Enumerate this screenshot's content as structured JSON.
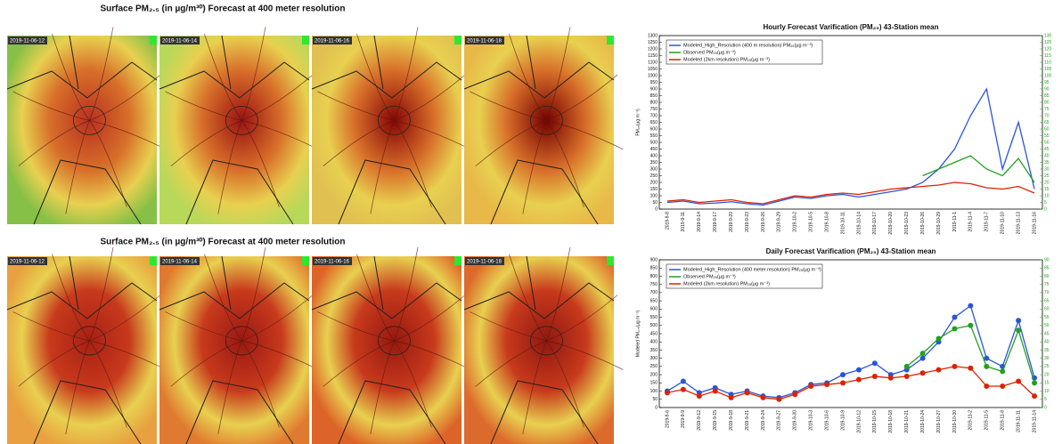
{
  "panels": [
    {
      "title": "Surface PM₂.₅ (in µg/m³⁰) Forecast at 400  meter resolution",
      "timestamps": [
        "2019-11-06-12",
        "2019-11-06-14",
        "2019-11-06-16",
        "2019-11-06-18"
      ]
    },
    {
      "title": "Surface PM₂.₅ (in µg/m³⁰) Forecast at 400  meter resolution",
      "timestamps": [
        "2019-11-06-12",
        "2019-11-06-14",
        "2019-11-06-16",
        "2019-11-06-18"
      ]
    }
  ],
  "chart_data": [
    {
      "type": "line",
      "title": "Hourly Forecast Varification (PM₂₅) 43-Station mean",
      "y_label": "PM₂₅(µg m⁻³)",
      "categories": [
        "2019-9-8",
        "2019-9-11",
        "2019-9-14",
        "2019-9-17",
        "2019-9-20",
        "2019-9-23",
        "2019-9-26",
        "2019-9-29",
        "2019-10-2",
        "2019-10-5",
        "2019-10-8",
        "2019-10-11",
        "2019-10-14",
        "2019-10-17",
        "2019-10-20",
        "2019-10-23",
        "2019-10-26",
        "2019-10-29",
        "2019-11-1",
        "2019-11-4",
        "2019-11-7",
        "2019-11-10",
        "2019-11-13",
        "2019-11-16"
      ],
      "series": [
        {
          "name": "Modeled_High_Resolution (400 m resolution) PM₂₅(µg m⁻³)",
          "color": "#2a55d6",
          "values": [
            50,
            60,
            40,
            45,
            55,
            40,
            30,
            60,
            90,
            80,
            100,
            110,
            90,
            110,
            130,
            150,
            200,
            300,
            450,
            700,
            900,
            300,
            650,
            150
          ]
        },
        {
          "name": "Observed PM₂₅(µg m⁻³)",
          "color": "#22a022",
          "values": [
            null,
            null,
            null,
            null,
            null,
            null,
            null,
            null,
            null,
            null,
            null,
            null,
            null,
            null,
            null,
            null,
            250,
            300,
            350,
            400,
            300,
            250,
            380,
            200
          ]
        },
        {
          "name": "Modeled (2km resolution) PM₂₅(µg m⁻³)",
          "color": "#dd2200",
          "values": [
            60,
            70,
            50,
            60,
            70,
            50,
            40,
            70,
            100,
            90,
            110,
            120,
            110,
            130,
            150,
            160,
            170,
            180,
            200,
            190,
            160,
            150,
            170,
            120
          ]
        }
      ],
      "ylim": [
        0,
        1300
      ],
      "yticks": [
        0,
        50,
        100,
        150,
        200,
        250,
        300,
        350,
        400,
        450,
        500,
        550,
        600,
        650,
        700,
        750,
        800,
        850,
        900,
        950,
        1000,
        1050,
        1100,
        1150,
        1200,
        1250,
        1300
      ],
      "y2lim": [
        0,
        130
      ],
      "y2ticks": [
        0,
        5,
        10,
        15,
        20,
        25,
        30,
        35,
        40,
        45,
        50,
        55,
        60,
        65,
        70,
        75,
        80,
        85,
        90,
        95,
        100,
        105,
        110,
        115,
        120,
        125,
        130
      ],
      "y2color": "#22a022",
      "markers": false
    },
    {
      "type": "line",
      "title": "Daily Forecast Varification (PM₂₅) 43-Station mean",
      "y_label": "Modeled PM₂.₅(µg m⁻³)",
      "categories": [
        "2019-9-6",
        "2019-9-9",
        "2019-9-12",
        "2019-9-15",
        "2019-9-18",
        "2019-9-21",
        "2019-9-24",
        "2019-9-27",
        "2019-9-30",
        "2019-10-3",
        "2019-10-6",
        "2019-10-9",
        "2019-10-12",
        "2019-10-15",
        "2019-10-18",
        "2019-10-21",
        "2019-10-24",
        "2019-10-27",
        "2019-10-30",
        "2019-11-2",
        "2019-11-5",
        "2019-11-8",
        "2019-11-11",
        "2019-11-14"
      ],
      "series": [
        {
          "name": "Modeled_High_Resolution (400 meter resolution) PM₂₅(µg m⁻³)",
          "color": "#2a55d6",
          "values": [
            100,
            160,
            90,
            120,
            80,
            100,
            70,
            60,
            90,
            140,
            150,
            200,
            230,
            270,
            200,
            230,
            300,
            400,
            550,
            620,
            300,
            250,
            530,
            180
          ]
        },
        {
          "name": "Observed PM₂₅(µg m⁻³)",
          "color": "#22a022",
          "values": [
            null,
            null,
            null,
            null,
            null,
            null,
            null,
            null,
            null,
            null,
            null,
            null,
            null,
            null,
            null,
            250,
            330,
            420,
            480,
            500,
            250,
            220,
            470,
            150
          ]
        },
        {
          "name": "Modeled (2km resolution) PM₂₅(µg m⁻³)",
          "color": "#dd2200",
          "values": [
            90,
            110,
            70,
            100,
            60,
            90,
            60,
            50,
            80,
            130,
            140,
            150,
            170,
            190,
            180,
            190,
            210,
            230,
            250,
            240,
            130,
            130,
            160,
            70
          ]
        }
      ],
      "ylim": [
        0,
        900
      ],
      "yticks": [
        0,
        50,
        100,
        150,
        200,
        250,
        300,
        350,
        400,
        450,
        500,
        550,
        600,
        650,
        700,
        750,
        800,
        850,
        900
      ],
      "y2lim": [
        0,
        90
      ],
      "y2ticks": [
        0,
        5,
        10,
        15,
        20,
        25,
        30,
        35,
        40,
        45,
        50,
        55,
        60,
        65,
        70,
        75,
        80,
        85,
        90
      ],
      "y2color": "#22a022",
      "markers": true
    }
  ]
}
